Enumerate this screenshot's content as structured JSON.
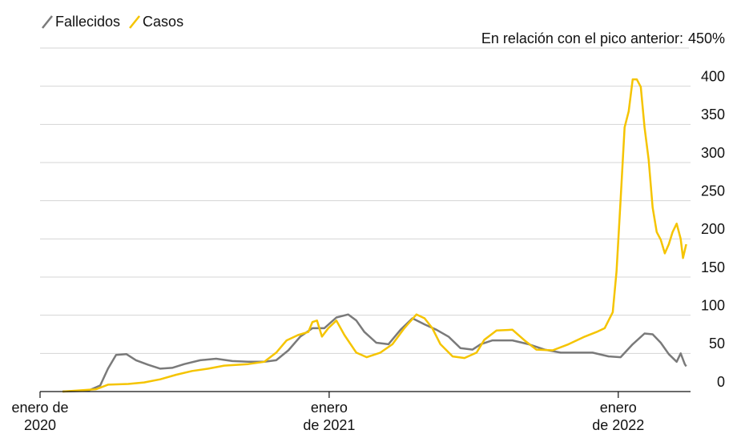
{
  "chart_data": {
    "type": "line",
    "annotation": "En relación con el pico anterior:",
    "xlim": [
      2020,
      2022.25
    ],
    "xticks": [
      {
        "value": 2020,
        "label": "enero de\n2020"
      },
      {
        "value": 2021,
        "label": "enero\nde 2021"
      },
      {
        "value": 2022,
        "label": "enero\nde 2022"
      }
    ],
    "ylim": [
      0,
      450
    ],
    "yticks": [
      0,
      50,
      100,
      150,
      200,
      250,
      300,
      350,
      400,
      {
        "value": 450,
        "label": "450%"
      }
    ],
    "grid": true,
    "legend": "top-left",
    "series": [
      {
        "name": "Fallecidos",
        "color": "#7a7a7a",
        "x": [
          2020.078,
          2020.166,
          2020.208,
          2020.235,
          2020.263,
          2020.299,
          2020.332,
          2020.374,
          2020.416,
          2020.457,
          2020.499,
          2020.554,
          2020.609,
          2020.665,
          2020.72,
          2020.776,
          2020.817,
          2020.859,
          2020.9,
          2020.942,
          2020.983,
          2021.025,
          2021.066,
          2021.094,
          2021.122,
          2021.163,
          2021.205,
          2021.247,
          2021.288,
          2021.33,
          2021.371,
          2021.413,
          2021.454,
          2021.496,
          2021.524,
          2021.565,
          2021.634,
          2021.69,
          2021.745,
          2021.801,
          2021.856,
          2021.911,
          2021.967,
          2022.008,
          2022.05,
          2022.091,
          2022.119,
          2022.147,
          2022.175,
          2022.202,
          2022.216,
          2022.23,
          2022.235
        ],
        "values": [
          0,
          1,
          8,
          30,
          48,
          49,
          41,
          35,
          30,
          31,
          36,
          41,
          43,
          40,
          39,
          39,
          41,
          54,
          72,
          83,
          83,
          97,
          101,
          93,
          78,
          64,
          62,
          81,
          96,
          88,
          81,
          72,
          57,
          55,
          62,
          67,
          67,
          62,
          55,
          51,
          51,
          51,
          46,
          45,
          62,
          76,
          75,
          64,
          49,
          39,
          50,
          36,
          33
        ]
      },
      {
        "name": "Casos",
        "color": "#f5c400",
        "x": [
          2020.078,
          2020.194,
          2020.235,
          2020.305,
          2020.36,
          2020.416,
          2020.471,
          2020.526,
          2020.582,
          2020.637,
          2020.72,
          2020.776,
          2020.817,
          2020.853,
          2020.892,
          2020.928,
          2020.942,
          2020.958,
          2020.975,
          2020.997,
          2021.025,
          2021.053,
          2021.094,
          2021.13,
          2021.177,
          2021.219,
          2021.26,
          2021.302,
          2021.33,
          2021.357,
          2021.385,
          2021.427,
          2021.468,
          2021.51,
          2021.537,
          2021.579,
          2021.634,
          2021.676,
          2021.717,
          2021.773,
          2021.828,
          2021.884,
          2021.925,
          2021.953,
          2021.981,
          2021.994,
          2022.008,
          2022.022,
          2022.036,
          2022.05,
          2022.064,
          2022.078,
          2022.091,
          2022.105,
          2022.119,
          2022.133,
          2022.147,
          2022.161,
          2022.175,
          2022.188,
          2022.202,
          2022.216,
          2022.224,
          2022.235
        ],
        "values": [
          0,
          3,
          9,
          10,
          12,
          16,
          22,
          27,
          30,
          34,
          36,
          39,
          51,
          67,
          74,
          78,
          91,
          93,
          72,
          83,
          93,
          74,
          51,
          45,
          51,
          62,
          83,
          101,
          96,
          83,
          62,
          46,
          44,
          51,
          68,
          80,
          81,
          67,
          55,
          54,
          62,
          72,
          78,
          83,
          104,
          157,
          251,
          346,
          367,
          409,
          409,
          399,
          346,
          304,
          241,
          209,
          199,
          181,
          193,
          209,
          220,
          200,
          175,
          193
        ]
      }
    ]
  }
}
